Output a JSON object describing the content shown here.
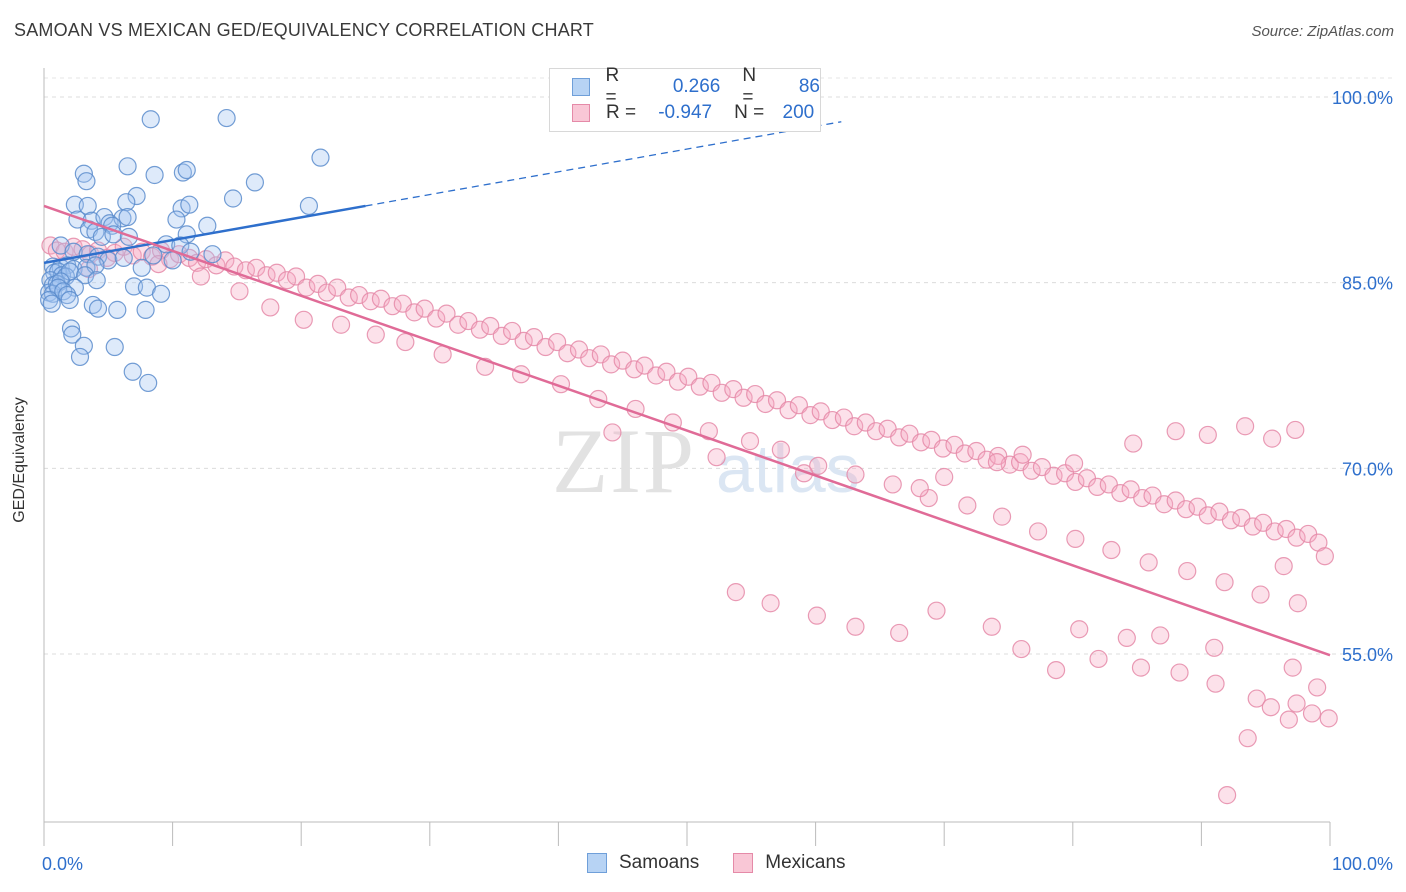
{
  "title": "SAMOAN VS MEXICAN GED/EQUIVALENCY CORRELATION CHART",
  "source": "Source: ZipAtlas.com",
  "legend_top": [
    {
      "r_label": "R =",
      "r_value": "0.266",
      "n_label": "N =",
      "n_value": "86"
    },
    {
      "r_label": "R =",
      "r_value": "-0.947",
      "n_label": "N =",
      "n_value": "200"
    }
  ],
  "watermark": "ZIPatlas",
  "chart_data": {
    "type": "scatter",
    "title": "SAMOAN VS MEXICAN GED/EQUIVALENCY CORRELATION CHART",
    "xlabel": "",
    "ylabel": "GED/Equivalency",
    "xlim": [
      0,
      100
    ],
    "ylim": [
      42,
      100
    ],
    "x_tick_labels": [
      "0.0%",
      "100.0%"
    ],
    "y_ticks": [
      55,
      70,
      85,
      100
    ],
    "y_tick_labels": [
      "55.0%",
      "70.0%",
      "85.0%",
      "100.0%"
    ],
    "grid": true,
    "colors": {
      "samoans": "#6f9fd9",
      "mexicans": "#e58aa8",
      "samoans_line": "#2e6fcc",
      "mexicans_line": "#e06b97",
      "tick_text": "#2e6fcc"
    },
    "series": [
      {
        "name": "Samoans",
        "R": 0.266,
        "N": 86,
        "trend": {
          "x": [
            0,
            25
          ],
          "y": [
            86.6,
            91.2
          ],
          "dashed_extension_to": [
            62,
            98.0
          ]
        },
        "points": [
          [
            8.3,
            98.2
          ],
          [
            14.2,
            98.3
          ],
          [
            21.5,
            95.1
          ],
          [
            6.5,
            94.4
          ],
          [
            3.1,
            93.8
          ],
          [
            3.3,
            93.2
          ],
          [
            8.6,
            93.7
          ],
          [
            10.8,
            93.9
          ],
          [
            11.1,
            94.1
          ],
          [
            16.4,
            93.1
          ],
          [
            7.2,
            92.0
          ],
          [
            6.4,
            91.5
          ],
          [
            2.4,
            91.3
          ],
          [
            3.4,
            91.2
          ],
          [
            10.7,
            91.0
          ],
          [
            11.3,
            91.3
          ],
          [
            14.7,
            91.8
          ],
          [
            20.6,
            91.2
          ],
          [
            2.6,
            90.1
          ],
          [
            3.7,
            90.0
          ],
          [
            4.7,
            90.3
          ],
          [
            5.1,
            89.8
          ],
          [
            6.1,
            90.2
          ],
          [
            6.5,
            90.3
          ],
          [
            5.3,
            89.6
          ],
          [
            10.3,
            90.1
          ],
          [
            12.7,
            89.6
          ],
          [
            3.5,
            89.3
          ],
          [
            4.0,
            89.1
          ],
          [
            4.5,
            88.7
          ],
          [
            5.4,
            88.9
          ],
          [
            6.6,
            88.7
          ],
          [
            11.1,
            88.9
          ],
          [
            1.3,
            88.0
          ],
          [
            2.3,
            87.5
          ],
          [
            3.4,
            87.3
          ],
          [
            4.2,
            87.1
          ],
          [
            5.0,
            86.8
          ],
          [
            6.2,
            87.0
          ],
          [
            8.5,
            87.2
          ],
          [
            9.5,
            88.1
          ],
          [
            10.6,
            88.0
          ],
          [
            11.4,
            87.5
          ],
          [
            13.1,
            87.3
          ],
          [
            0.7,
            86.3
          ],
          [
            1.3,
            86.2
          ],
          [
            1.8,
            86.4
          ],
          [
            2.3,
            86.1
          ],
          [
            3.3,
            86.2
          ],
          [
            4.0,
            86.4
          ],
          [
            7.6,
            86.2
          ],
          [
            10.0,
            86.8
          ],
          [
            0.8,
            85.8
          ],
          [
            1.1,
            85.9
          ],
          [
            1.4,
            85.6
          ],
          [
            1.7,
            85.5
          ],
          [
            2.0,
            85.9
          ],
          [
            3.2,
            85.6
          ],
          [
            4.1,
            85.2
          ],
          [
            0.5,
            85.2
          ],
          [
            0.7,
            84.8
          ],
          [
            1.0,
            84.9
          ],
          [
            1.3,
            85.1
          ],
          [
            2.4,
            84.6
          ],
          [
            0.4,
            84.2
          ],
          [
            0.7,
            84.1
          ],
          [
            1.1,
            84.6
          ],
          [
            1.5,
            84.3
          ],
          [
            1.8,
            84.0
          ],
          [
            0.4,
            83.6
          ],
          [
            0.6,
            83.3
          ],
          [
            2.0,
            83.6
          ],
          [
            3.8,
            83.2
          ],
          [
            7.0,
            84.7
          ],
          [
            8.0,
            84.6
          ],
          [
            9.1,
            84.1
          ],
          [
            4.2,
            82.9
          ],
          [
            5.7,
            82.8
          ],
          [
            7.9,
            82.8
          ],
          [
            2.1,
            81.3
          ],
          [
            2.2,
            80.8
          ],
          [
            3.1,
            79.9
          ],
          [
            5.5,
            79.8
          ],
          [
            2.8,
            79.0
          ],
          [
            6.9,
            77.8
          ],
          [
            8.1,
            76.9
          ]
        ]
      },
      {
        "name": "Mexicans",
        "R": -0.947,
        "N": 200,
        "trend": {
          "x": [
            0,
            100
          ],
          "y": [
            91.2,
            54.9
          ]
        },
        "points": [
          [
            0.5,
            88.0
          ],
          [
            1.0,
            87.6
          ],
          [
            1.6,
            87.5
          ],
          [
            2.3,
            87.9
          ],
          [
            3.0,
            87.7
          ],
          [
            3.6,
            87.3
          ],
          [
            4.2,
            87.6
          ],
          [
            4.9,
            87.0
          ],
          [
            5.5,
            87.4
          ],
          [
            6.2,
            87.9
          ],
          [
            6.9,
            87.2
          ],
          [
            7.6,
            87.5
          ],
          [
            8.4,
            87.1
          ],
          [
            9.1,
            87.6
          ],
          [
            9.8,
            86.9
          ],
          [
            10.5,
            87.3
          ],
          [
            11.3,
            87.0
          ],
          [
            11.9,
            86.6
          ],
          [
            12.6,
            86.9
          ],
          [
            13.4,
            86.4
          ],
          [
            14.1,
            86.8
          ],
          [
            14.8,
            86.3
          ],
          [
            15.7,
            86.0
          ],
          [
            16.5,
            86.2
          ],
          [
            17.3,
            85.6
          ],
          [
            18.1,
            85.8
          ],
          [
            18.9,
            85.2
          ],
          [
            19.6,
            85.5
          ],
          [
            20.4,
            84.6
          ],
          [
            21.3,
            84.9
          ],
          [
            22.0,
            84.2
          ],
          [
            22.8,
            84.6
          ],
          [
            23.7,
            83.8
          ],
          [
            24.5,
            84.0
          ],
          [
            25.4,
            83.5
          ],
          [
            26.2,
            83.7
          ],
          [
            27.1,
            83.1
          ],
          [
            27.9,
            83.3
          ],
          [
            28.8,
            82.6
          ],
          [
            29.6,
            82.9
          ],
          [
            30.5,
            82.1
          ],
          [
            31.3,
            82.5
          ],
          [
            32.2,
            81.6
          ],
          [
            33.0,
            81.9
          ],
          [
            33.9,
            81.2
          ],
          [
            34.7,
            81.5
          ],
          [
            35.6,
            80.7
          ],
          [
            36.4,
            81.1
          ],
          [
            37.3,
            80.3
          ],
          [
            38.1,
            80.6
          ],
          [
            39.0,
            79.8
          ],
          [
            39.9,
            80.2
          ],
          [
            40.7,
            79.3
          ],
          [
            41.6,
            79.6
          ],
          [
            42.4,
            78.9
          ],
          [
            43.3,
            79.2
          ],
          [
            44.1,
            78.4
          ],
          [
            45.0,
            78.7
          ],
          [
            45.9,
            78.0
          ],
          [
            46.7,
            78.3
          ],
          [
            47.6,
            77.5
          ],
          [
            48.4,
            77.8
          ],
          [
            49.3,
            77.0
          ],
          [
            50.1,
            77.4
          ],
          [
            51.0,
            76.6
          ],
          [
            51.9,
            76.9
          ],
          [
            52.7,
            76.1
          ],
          [
            53.6,
            76.4
          ],
          [
            54.4,
            75.7
          ],
          [
            55.3,
            76.0
          ],
          [
            56.1,
            75.2
          ],
          [
            57.0,
            75.5
          ],
          [
            57.9,
            74.7
          ],
          [
            58.7,
            75.1
          ],
          [
            59.6,
            74.3
          ],
          [
            60.4,
            74.6
          ],
          [
            61.3,
            73.9
          ],
          [
            62.2,
            74.1
          ],
          [
            63.0,
            73.4
          ],
          [
            63.9,
            73.7
          ],
          [
            64.7,
            73.0
          ],
          [
            65.6,
            73.2
          ],
          [
            66.5,
            72.5
          ],
          [
            67.3,
            72.8
          ],
          [
            68.2,
            72.1
          ],
          [
            69.0,
            72.3
          ],
          [
            69.9,
            71.6
          ],
          [
            70.8,
            71.9
          ],
          [
            71.6,
            71.2
          ],
          [
            72.5,
            71.4
          ],
          [
            73.3,
            70.7
          ],
          [
            74.2,
            71.0
          ],
          [
            75.1,
            70.3
          ],
          [
            75.9,
            70.5
          ],
          [
            76.8,
            69.8
          ],
          [
            77.6,
            70.1
          ],
          [
            78.5,
            69.4
          ],
          [
            79.4,
            69.6
          ],
          [
            80.2,
            68.9
          ],
          [
            81.1,
            69.2
          ],
          [
            81.9,
            68.5
          ],
          [
            82.8,
            68.7
          ],
          [
            83.7,
            68.0
          ],
          [
            84.5,
            68.3
          ],
          [
            85.4,
            67.6
          ],
          [
            86.2,
            67.8
          ],
          [
            87.1,
            67.1
          ],
          [
            88.0,
            67.4
          ],
          [
            88.8,
            66.7
          ],
          [
            89.7,
            66.9
          ],
          [
            90.5,
            66.2
          ],
          [
            91.4,
            66.5
          ],
          [
            92.3,
            65.8
          ],
          [
            93.1,
            66.0
          ],
          [
            94.0,
            65.3
          ],
          [
            94.8,
            65.6
          ],
          [
            95.7,
            64.9
          ],
          [
            96.6,
            65.1
          ],
          [
            97.4,
            64.4
          ],
          [
            98.3,
            64.7
          ],
          [
            99.1,
            64.0
          ],
          [
            3.5,
            86.1
          ],
          [
            8.9,
            86.5
          ],
          [
            12.2,
            85.5
          ],
          [
            15.2,
            84.3
          ],
          [
            17.6,
            83.0
          ],
          [
            20.2,
            82.0
          ],
          [
            23.1,
            81.6
          ],
          [
            25.8,
            80.8
          ],
          [
            28.1,
            80.2
          ],
          [
            31.0,
            79.2
          ],
          [
            34.3,
            78.2
          ],
          [
            37.1,
            77.6
          ],
          [
            40.2,
            76.8
          ],
          [
            43.1,
            75.6
          ],
          [
            46.0,
            74.8
          ],
          [
            48.9,
            73.7
          ],
          [
            51.7,
            73.0
          ],
          [
            54.9,
            72.2
          ],
          [
            57.3,
            71.5
          ],
          [
            60.2,
            70.2
          ],
          [
            63.1,
            69.5
          ],
          [
            66.0,
            68.7
          ],
          [
            68.8,
            67.6
          ],
          [
            71.8,
            67.0
          ],
          [
            74.5,
            66.1
          ],
          [
            77.3,
            64.9
          ],
          [
            80.2,
            64.3
          ],
          [
            83.0,
            63.4
          ],
          [
            85.9,
            62.4
          ],
          [
            88.9,
            61.7
          ],
          [
            91.8,
            60.8
          ],
          [
            94.6,
            59.8
          ],
          [
            97.5,
            59.1
          ],
          [
            44.2,
            72.9
          ],
          [
            52.3,
            70.9
          ],
          [
            59.1,
            69.6
          ],
          [
            68.1,
            68.4
          ],
          [
            70.0,
            69.3
          ],
          [
            74.1,
            70.5
          ],
          [
            76.1,
            71.1
          ],
          [
            80.1,
            70.4
          ],
          [
            84.7,
            72.0
          ],
          [
            88.0,
            73.0
          ],
          [
            90.5,
            72.7
          ],
          [
            93.4,
            73.4
          ],
          [
            95.5,
            72.4
          ],
          [
            97.3,
            73.1
          ],
          [
            96.4,
            62.1
          ],
          [
            99.6,
            62.9
          ],
          [
            53.8,
            60.0
          ],
          [
            56.5,
            59.1
          ],
          [
            60.1,
            58.1
          ],
          [
            63.1,
            57.2
          ],
          [
            66.5,
            56.7
          ],
          [
            69.4,
            58.5
          ],
          [
            73.7,
            57.2
          ],
          [
            76.0,
            55.4
          ],
          [
            78.7,
            53.7
          ],
          [
            82.0,
            54.6
          ],
          [
            85.3,
            53.9
          ],
          [
            88.3,
            53.5
          ],
          [
            91.1,
            52.6
          ],
          [
            94.3,
            51.4
          ],
          [
            95.4,
            50.7
          ],
          [
            97.4,
            51.0
          ],
          [
            98.6,
            50.2
          ],
          [
            99.9,
            49.8
          ],
          [
            93.6,
            48.2
          ],
          [
            96.8,
            49.7
          ],
          [
            99.0,
            52.3
          ],
          [
            97.1,
            53.9
          ],
          [
            92.0,
            43.6
          ],
          [
            91.0,
            55.5
          ],
          [
            86.8,
            56.5
          ],
          [
            84.2,
            56.3
          ],
          [
            80.5,
            57.0
          ]
        ]
      }
    ]
  },
  "bottom_legend": [
    {
      "label": "Samoans"
    },
    {
      "label": "Mexicans"
    }
  ]
}
